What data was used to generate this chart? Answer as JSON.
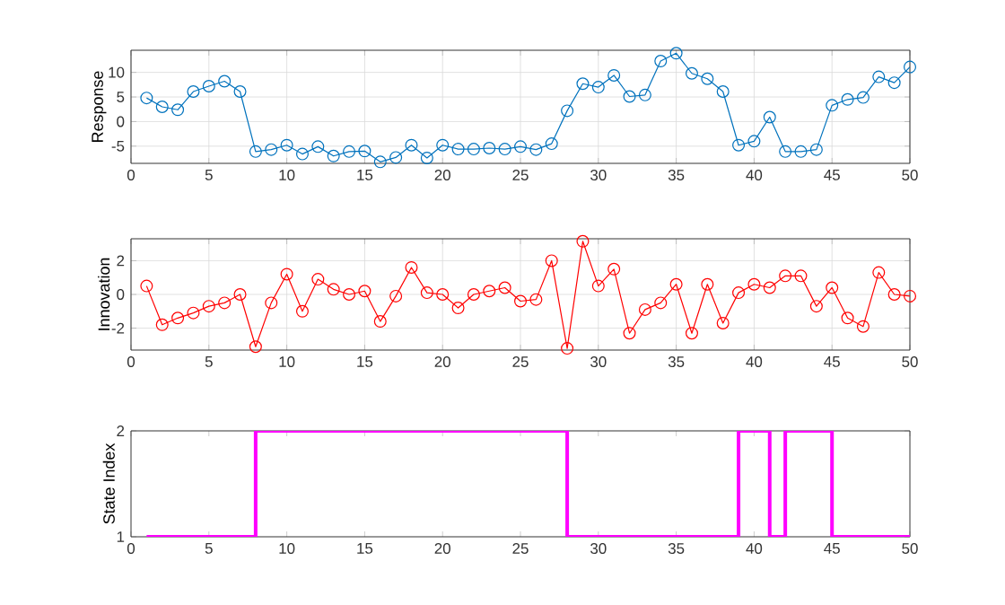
{
  "chart_data": [
    {
      "type": "line",
      "ylabel": "Response",
      "x": [
        1,
        2,
        3,
        4,
        5,
        6,
        7,
        8,
        9,
        10,
        11,
        12,
        13,
        14,
        15,
        16,
        17,
        18,
        19,
        20,
        21,
        22,
        23,
        24,
        25,
        26,
        27,
        28,
        29,
        30,
        31,
        32,
        33,
        34,
        35,
        36,
        37,
        38,
        39,
        40,
        41,
        42,
        43,
        44,
        45,
        46,
        47,
        48,
        49,
        50
      ],
      "series": [
        {
          "color": "#0072bd",
          "values": [
            4.8,
            3.0,
            2.4,
            6.1,
            7.2,
            8.2,
            6.1,
            -6.1,
            -5.7,
            -4.8,
            -6.6,
            -5.1,
            -7.0,
            -6.1,
            -6.0,
            -8.2,
            -7.3,
            -4.8,
            -7.4,
            -4.8,
            -5.6,
            -5.6,
            -5.4,
            -5.6,
            -5.1,
            -5.7,
            -4.5,
            2.2,
            7.7,
            7.0,
            9.4,
            5.1,
            5.4,
            12.3,
            13.9,
            9.8,
            8.7,
            6.1,
            -4.8,
            -4.0,
            0.9,
            -6.1,
            -6.1,
            -5.7,
            3.3,
            4.5,
            4.9,
            9.1,
            7.9,
            11.1
          ]
        }
      ],
      "xlim": [
        0,
        50
      ],
      "ylim": [
        -8.5,
        14.5
      ],
      "xticks": [
        0,
        5,
        10,
        15,
        20,
        25,
        30,
        35,
        40,
        45,
        50
      ],
      "yticks": [
        -5,
        0,
        5,
        10
      ],
      "grid": true,
      "marker": "circle"
    },
    {
      "type": "line",
      "ylabel": "Innovation",
      "x": [
        1,
        2,
        3,
        4,
        5,
        6,
        7,
        8,
        9,
        10,
        11,
        12,
        13,
        14,
        15,
        16,
        17,
        18,
        19,
        20,
        21,
        22,
        23,
        24,
        25,
        26,
        27,
        28,
        29,
        30,
        31,
        32,
        33,
        34,
        35,
        36,
        37,
        38,
        39,
        40,
        41,
        42,
        43,
        44,
        45,
        46,
        47,
        48,
        49,
        50
      ],
      "series": [
        {
          "color": "#ff0000",
          "values": [
            0.5,
            -1.8,
            -1.4,
            -1.1,
            -0.7,
            -0.5,
            0.0,
            -3.1,
            -0.5,
            1.2,
            -1.0,
            0.9,
            0.3,
            0.0,
            0.2,
            -1.6,
            -0.1,
            1.6,
            0.1,
            0.0,
            -0.8,
            0.0,
            0.2,
            0.4,
            -0.4,
            -0.3,
            2.0,
            -3.2,
            3.15,
            0.5,
            1.5,
            -2.3,
            -0.9,
            -0.5,
            0.6,
            -2.3,
            0.6,
            -1.7,
            0.1,
            0.6,
            0.4,
            1.1,
            1.1,
            -0.7,
            0.4,
            -1.4,
            -1.9,
            1.3,
            0.0,
            -0.1
          ]
        }
      ],
      "xlim": [
        0,
        50
      ],
      "ylim": [
        -3.3,
        3.3
      ],
      "xticks": [
        0,
        5,
        10,
        15,
        20,
        25,
        30,
        35,
        40,
        45,
        50
      ],
      "yticks": [
        -2,
        0,
        2
      ],
      "grid": true,
      "marker": "circle"
    },
    {
      "type": "step",
      "ylabel": "State Index",
      "x": [
        1,
        2,
        3,
        4,
        5,
        6,
        7,
        8,
        9,
        10,
        11,
        12,
        13,
        14,
        15,
        16,
        17,
        18,
        19,
        20,
        21,
        22,
        23,
        24,
        25,
        26,
        27,
        28,
        29,
        30,
        31,
        32,
        33,
        34,
        35,
        36,
        37,
        38,
        39,
        40,
        41,
        42,
        43,
        44,
        45,
        46,
        47,
        48,
        49,
        50
      ],
      "series": [
        {
          "color": "#ff00ff",
          "values": [
            1,
            1,
            1,
            1,
            1,
            1,
            1,
            2,
            2,
            2,
            2,
            2,
            2,
            2,
            2,
            2,
            2,
            2,
            2,
            2,
            2,
            2,
            2,
            2,
            2,
            2,
            2,
            1,
            1,
            1,
            1,
            1,
            1,
            1,
            1,
            1,
            1,
            1,
            2,
            2,
            1,
            2,
            2,
            2,
            1,
            1,
            1,
            1,
            1,
            1
          ]
        }
      ],
      "xlim": [
        0,
        50
      ],
      "ylim": [
        1,
        2
      ],
      "xticks": [
        0,
        5,
        10,
        15,
        20,
        25,
        30,
        35,
        40,
        45,
        50
      ],
      "yticks": [
        1,
        2
      ],
      "grid": false
    }
  ]
}
